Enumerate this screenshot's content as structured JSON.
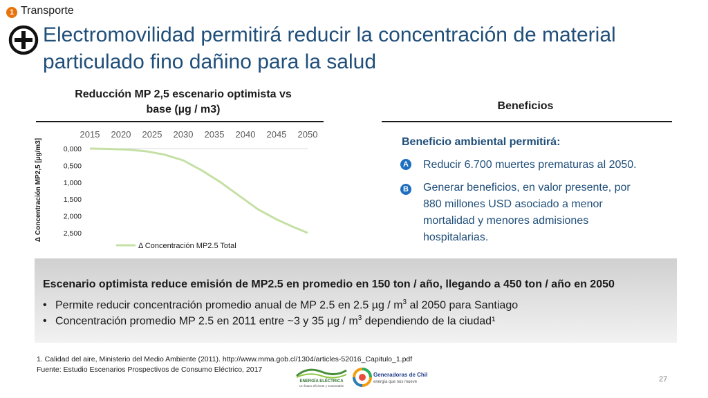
{
  "section": {
    "number": "1",
    "label": "Transporte"
  },
  "title": "Electromovilidad permitirá reducir la concentración de material particulado fino dañino para la salud",
  "chart_data": {
    "type": "line",
    "title": "Reducción MP 2,5 escenario optimista vs base (µg / m3)",
    "ylabel": "Δ Concentración MP2,5 [µg/m3]",
    "xlabel": "",
    "x_ticks": [
      "2015",
      "2020",
      "2025",
      "2030",
      "2035",
      "2040",
      "2045",
      "2050"
    ],
    "y_ticks": [
      "0,000",
      "0,500",
      "1,000",
      "1,500",
      "2,000",
      "2,500"
    ],
    "y_inverted": true,
    "xlim": [
      2015,
      2050
    ],
    "ylim": [
      0,
      2.5
    ],
    "legend_position": "bottom",
    "series": [
      {
        "name": "Δ Concentración MP2.5 Total",
        "color": "#c5e0a5",
        "x": [
          2015,
          2018,
          2021,
          2024,
          2027,
          2030,
          2033,
          2036,
          2039,
          2042,
          2045,
          2048,
          2050
        ],
        "values": [
          0.0,
          0.01,
          0.03,
          0.08,
          0.18,
          0.35,
          0.65,
          1.0,
          1.4,
          1.8,
          2.1,
          2.35,
          2.5
        ]
      }
    ]
  },
  "benefits": {
    "title": "Beneficios",
    "heading": "Beneficio ambiental permitirá:",
    "items": [
      {
        "badge": "A",
        "lines": [
          "Reducir 6.700 muertes prematuras al 2050."
        ]
      },
      {
        "badge": "B",
        "lines": [
          "Generar beneficios, en valor presente, por",
          "880 millones USD asociado a  menor",
          "mortalidad y menores admisiones",
          "hospitalarias."
        ]
      }
    ]
  },
  "summary": {
    "heading": "Escenario optimista reduce emisión de MP2.5 en promedio en 150 ton / año, llegando a 450 ton / año en 2050",
    "bullet_char": "•",
    "item1_pre": "Permite reducir concentración promedio anual de MP 2.5 en 2.5 µg / m",
    "item1_sup": "3",
    "item1_post": " al 2050 para Santiago",
    "item2_pre": "Concentración promedio MP 2.5 en 2011 entre ~3 y 35 µg / m",
    "item2_sup": "3",
    "item2_post": " dependiendo de la ciudad¹"
  },
  "footnotes": [
    "1. Calidad del aire, Ministerio del Medio Ambiente (2011). http://www.mma.gob.cl/1304/articles-52016_Capitulo_1.pdf",
    "Fuente: Estudio Escenarios Prospectivos de Consumo Eléctrico, 2017"
  ],
  "page_number": "27",
  "logos": {
    "energia_name": "ENERGÍA ELÉCTRICA",
    "energia_tagline": "Un futuro eficiente y sustentable",
    "generadoras_name": "Generadoras de Chile",
    "generadoras_tagline": "energía que nos mueve"
  },
  "colors": {
    "title": "#1f4e79",
    "section_badge": "#e8730c",
    "benefit_badge": "#1f6fbf",
    "series": "#c5e0a5"
  },
  "icons": {
    "title_icon": "plus-circle-icon"
  }
}
